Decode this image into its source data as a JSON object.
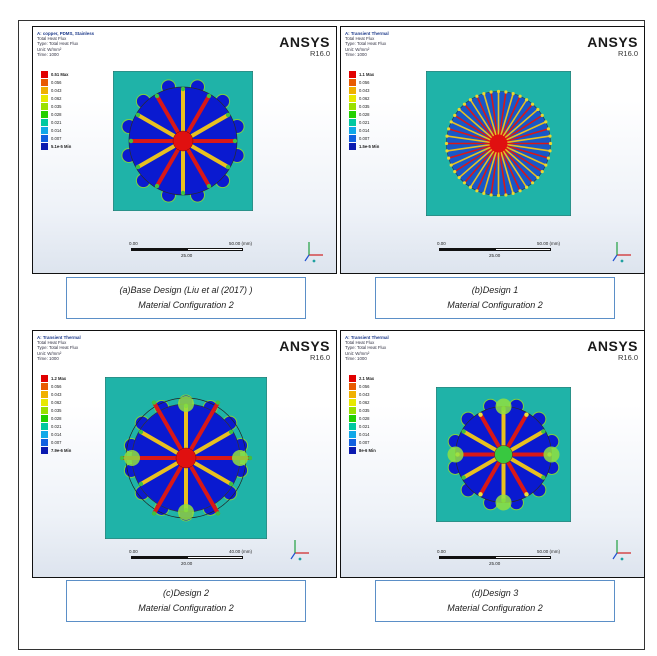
{
  "panels": [
    {
      "header": [
        "A: copper, PDMS, Stainless",
        "Total Heat Flux",
        "Type: Total Heat Flux",
        "Unit: W/mm²",
        "Time: 1000"
      ],
      "brand": "ANSYS",
      "version": "R16.0",
      "legend": [
        "0.51 Max",
        "0.056",
        "0.043",
        "0.062",
        "0.035",
        "0.028",
        "0.021",
        "0.014",
        "0.007",
        "5.1e-5 Min"
      ],
      "scale": {
        "start": "0.00",
        "end": "50.00 (mm)",
        "mid": "25.00"
      },
      "caption": [
        "(a)Base Design (Liu et al (2017) )",
        "Material Configuration 2"
      ]
    },
    {
      "header": [
        "A: Transient Thermal",
        "Total Heat Flux",
        "Type: Total Heat Flux",
        "Unit: W/mm²",
        "Time: 1000"
      ],
      "brand": "ANSYS",
      "version": "R16.0",
      "legend": [
        "1.1 Max",
        "0.056",
        "0.043",
        "0.062",
        "0.035",
        "0.028",
        "0.021",
        "0.014",
        "0.007",
        "1.5e-5 Min"
      ],
      "scale": {
        "start": "0.00",
        "end": "50.00 (mm)",
        "mid": "25.00"
      },
      "caption": [
        "(b)Design 1",
        "Material Configuration 2"
      ]
    },
    {
      "header": [
        "A: Transient Thermal",
        "Total Heat Flux",
        "Type: Total Heat Flux",
        "Unit: W/mm²",
        "Time: 1000"
      ],
      "brand": "ANSYS",
      "version": "R16.0",
      "legend": [
        "1.2 Max",
        "0.056",
        "0.043",
        "0.062",
        "0.035",
        "0.028",
        "0.021",
        "0.014",
        "0.007",
        "7.9e-6 Min"
      ],
      "scale": {
        "start": "0.00",
        "end": "40.00 (mm)",
        "mid": "20.00"
      },
      "caption": [
        "(c)Design 2",
        "Material Configuration 2"
      ]
    },
    {
      "header": [
        "A: Transient Thermal",
        "Total Heat Flux",
        "Type: Total Heat Flux",
        "Unit: W/mm²",
        "Time: 1000"
      ],
      "brand": "ANSYS",
      "version": "R16.0",
      "legend": [
        "2.1 Max",
        "0.056",
        "0.043",
        "0.062",
        "0.035",
        "0.028",
        "0.021",
        "0.014",
        "0.007",
        "8e-6 Min"
      ],
      "scale": {
        "start": "0.00",
        "end": "50.00 (mm)",
        "mid": "25.00"
      },
      "caption": [
        "(d)Design 3",
        "Material Configuration 2"
      ]
    }
  ],
  "legend_colors": [
    "#e10000",
    "#e85a00",
    "#f0b000",
    "#e8e800",
    "#9ae000",
    "#22d000",
    "#00c8a0",
    "#10a8e8",
    "#1060e0",
    "#0a1ab0"
  ],
  "colors": {
    "field": "#1fb3a8",
    "hub_red": "#e01010",
    "hub_green": "#38c840",
    "body_blue": "#0a1ad0",
    "spoke_red": "#d81818",
    "spoke_yellow": "#e8c020"
  }
}
